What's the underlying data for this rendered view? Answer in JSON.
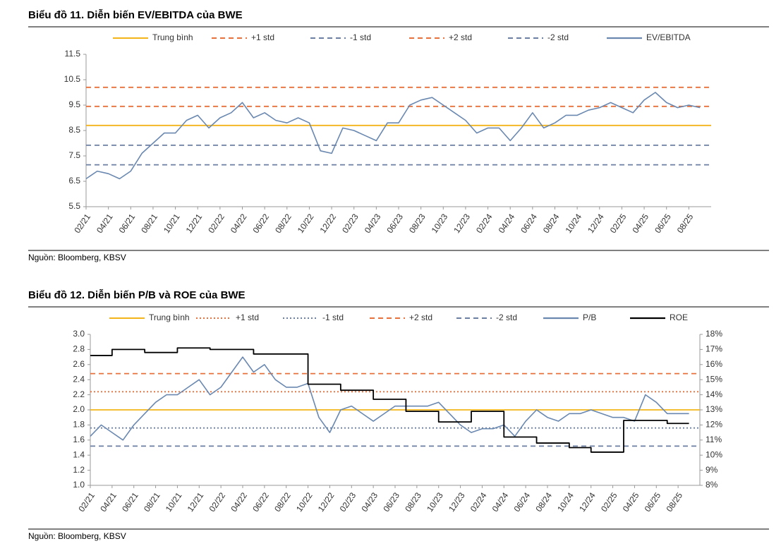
{
  "chart_data": [
    {
      "type": "line",
      "title": "Biểu đồ 11. Diễn biến EV/EBITDA của BWE",
      "source": "Nguồn: Bloomberg, KBSV",
      "categories": [
        "02/21",
        null,
        "04/21",
        null,
        "06/21",
        null,
        "08/21",
        null,
        "10/21",
        null,
        "12/21",
        null,
        "02/22",
        null,
        "04/22",
        null,
        "06/22",
        null,
        "08/22",
        null,
        "10/22",
        null,
        "12/22",
        null,
        "02/23",
        null,
        "04/23",
        null,
        "06/23",
        null,
        "08/23",
        null,
        "10/23",
        null,
        "12/23",
        null,
        "02/24",
        null,
        "04/24",
        null,
        "06/24",
        null,
        "08/24",
        null,
        "10/24",
        null,
        "12/24",
        null,
        "02/25",
        null,
        "04/25",
        null,
        "06/25",
        null,
        "08/25",
        null
      ],
      "ylim": [
        5.5,
        11.5
      ],
      "yticks": [
        5.5,
        6.5,
        7.5,
        8.5,
        9.5,
        10.5,
        11.5
      ],
      "reference_lines": [
        {
          "name": "Trung bình",
          "color": "#f2b418",
          "style": "solid",
          "value": 8.7
        },
        {
          "name": "+1 std",
          "color": "#e8703a",
          "style": "dashed",
          "value": 9.45
        },
        {
          "name": "-1 std",
          "color": "#6b7fa3",
          "style": "dashed",
          "value": 7.92
        },
        {
          "name": "+2 std",
          "color": "#e8703a",
          "style": "dashed",
          "value": 10.2
        },
        {
          "name": "-2 std",
          "color": "#6b7fa3",
          "style": "dashed",
          "value": 7.15
        }
      ],
      "series": [
        {
          "name": "EV/EBITDA",
          "color": "#6a88b0",
          "values": [
            6.6,
            6.9,
            6.8,
            6.6,
            6.9,
            7.6,
            8.0,
            8.4,
            8.4,
            8.9,
            9.1,
            8.6,
            9.0,
            9.2,
            9.6,
            9.0,
            9.2,
            8.9,
            8.8,
            9.0,
            8.8,
            7.7,
            7.6,
            8.6,
            8.5,
            8.3,
            8.1,
            8.8,
            8.8,
            9.5,
            9.7,
            9.8,
            9.5,
            9.2,
            8.9,
            8.4,
            8.6,
            8.6,
            8.1,
            8.6,
            9.2,
            8.6,
            8.8,
            9.1,
            9.1,
            9.3,
            9.4,
            9.6,
            9.4,
            9.2,
            9.7,
            10.0,
            9.6,
            9.4,
            9.5,
            9.4
          ]
        }
      ]
    },
    {
      "type": "line",
      "title": "Biểu đồ 12. Diễn biến P/B và ROE của BWE",
      "source": "Nguồn: Bloomberg, KBSV",
      "categories": [
        "02/21",
        null,
        "04/21",
        null,
        "06/21",
        null,
        "08/21",
        null,
        "10/21",
        null,
        "12/21",
        null,
        "02/22",
        null,
        "04/22",
        null,
        "06/22",
        null,
        "08/22",
        null,
        "10/22",
        null,
        "12/22",
        null,
        "02/23",
        null,
        "04/23",
        null,
        "06/23",
        null,
        "08/23",
        null,
        "10/23",
        null,
        "12/23",
        null,
        "02/24",
        null,
        "04/24",
        null,
        "06/24",
        null,
        "08/24",
        null,
        "10/24",
        null,
        "12/24",
        null,
        "02/25",
        null,
        "04/25",
        null,
        "06/25",
        null,
        "08/25",
        null
      ],
      "ylim": [
        1.0,
        3.0
      ],
      "yticks": [
        {
          "value": 1.0,
          "label": "1.0"
        },
        1.2,
        1.4,
        1.6,
        1.8,
        {
          "value": 2.0,
          "label": "2.0"
        },
        2.2,
        2.4,
        2.6,
        2.8,
        {
          "value": 3.0,
          "label": "3.0"
        }
      ],
      "y2lim": [
        8,
        18
      ],
      "y2ticks": [
        {
          "value": 8,
          "label": "8%"
        },
        {
          "value": 9,
          "label": "9%"
        },
        {
          "value": 10,
          "label": "10%"
        },
        {
          "value": 11,
          "label": "11%"
        },
        {
          "value": 12,
          "label": "12%"
        },
        {
          "value": 13,
          "label": "13%"
        },
        {
          "value": 14,
          "label": "14%"
        },
        {
          "value": 15,
          "label": "15%"
        },
        {
          "value": 16,
          "label": "16%"
        },
        {
          "value": 17,
          "label": "17%"
        },
        {
          "value": 18,
          "label": "18%"
        }
      ],
      "reference_lines": [
        {
          "name": "Trung bình",
          "color": "#f2b418",
          "style": "solid",
          "value": 2.0
        },
        {
          "name": "+1 std",
          "color": "#e8703a",
          "style": "dotted",
          "value": 2.24
        },
        {
          "name": "-1 std",
          "color": "#6b7fa3",
          "style": "dotted",
          "value": 1.76
        },
        {
          "name": "+2 std",
          "color": "#e8703a",
          "style": "dashed",
          "value": 2.48
        },
        {
          "name": "-2 std",
          "color": "#6b7fa3",
          "style": "dashed",
          "value": 1.52
        }
      ],
      "series": [
        {
          "name": "P/B",
          "color": "#6a88b0",
          "values": [
            1.65,
            1.8,
            1.7,
            1.6,
            1.8,
            1.95,
            2.1,
            2.2,
            2.2,
            2.3,
            2.4,
            2.2,
            2.3,
            2.5,
            2.7,
            2.5,
            2.6,
            2.4,
            2.3,
            2.3,
            2.35,
            1.9,
            1.7,
            2.0,
            2.05,
            1.95,
            1.85,
            1.95,
            2.05,
            2.05,
            2.05,
            2.05,
            2.1,
            1.95,
            1.8,
            1.7,
            1.75,
            1.75,
            1.8,
            1.65,
            1.85,
            2.0,
            1.9,
            1.85,
            1.95,
            1.95,
            2.0,
            1.95,
            1.9,
            1.9,
            1.85,
            2.2,
            2.1,
            1.95,
            1.95,
            1.95
          ]
        },
        {
          "name": "ROE",
          "color": "#000000",
          "axis": "y2",
          "step": true,
          "values": [
            16.6,
            16.6,
            17.0,
            17.0,
            17.0,
            16.8,
            16.8,
            16.8,
            17.1,
            17.1,
            17.1,
            17.0,
            17.0,
            17.0,
            17.0,
            16.7,
            16.7,
            16.7,
            16.7,
            16.7,
            14.7,
            14.7,
            14.7,
            14.3,
            14.3,
            14.3,
            13.7,
            13.7,
            13.7,
            12.9,
            12.9,
            12.9,
            12.2,
            12.2,
            12.2,
            12.9,
            12.9,
            12.9,
            11.2,
            11.2,
            11.2,
            10.8,
            10.8,
            10.8,
            10.5,
            10.5,
            10.2,
            10.2,
            10.2,
            12.3,
            12.3,
            12.3,
            12.3,
            12.1,
            12.1,
            12.1
          ]
        }
      ]
    }
  ]
}
